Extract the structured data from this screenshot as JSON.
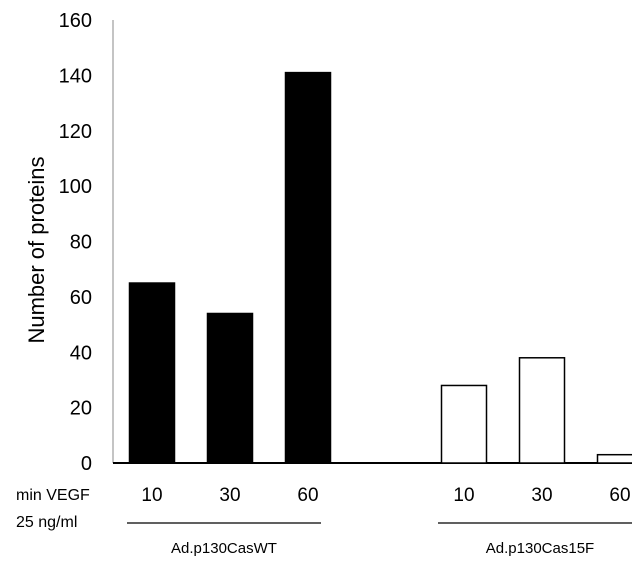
{
  "chart_data": {
    "type": "bar",
    "title": "",
    "ylabel": "Number of proteins",
    "xlabel": "",
    "ylim": [
      0,
      160
    ],
    "yticks": [
      0,
      20,
      40,
      60,
      80,
      100,
      120,
      140,
      160
    ],
    "row_labels": [
      "min VEGF",
      "25 ng/ml"
    ],
    "groups": [
      {
        "name": "Ad.p130CasWT",
        "fill": "#000000",
        "categories": [
          "10",
          "30",
          "60"
        ],
        "values": [
          65,
          54,
          141
        ]
      },
      {
        "name": "Ad.p130Cas15F",
        "fill": "#ffffff",
        "categories": [
          "10",
          "30",
          "60"
        ],
        "values": [
          28,
          38,
          3
        ]
      }
    ],
    "grid": false,
    "legend": "none"
  }
}
